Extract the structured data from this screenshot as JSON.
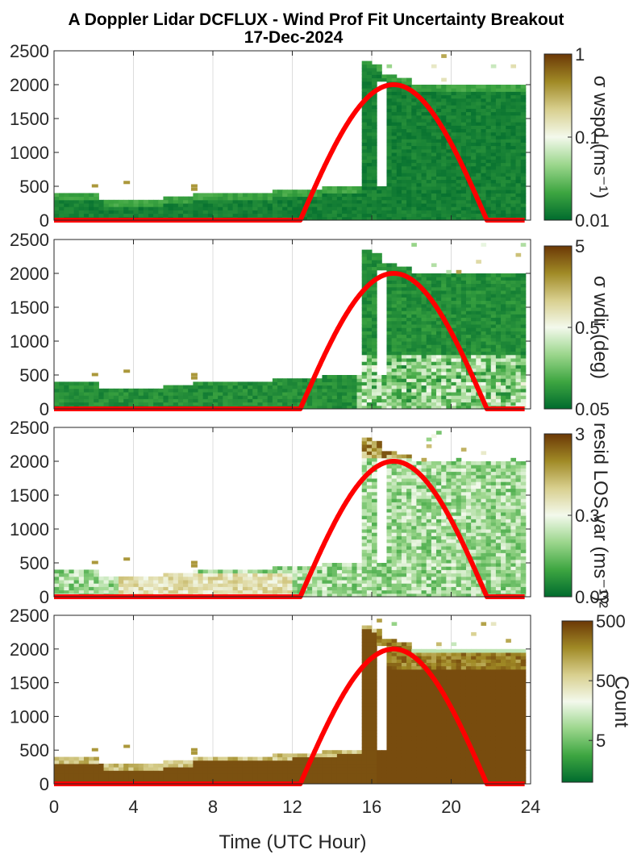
{
  "title": {
    "line1": "A Doppler Lidar DCFLUX - Wind Prof Fit Uncertainty Breakout",
    "line2": "17-Dec-2024"
  },
  "colors": {
    "sun_curve": "#ff0000",
    "colormap": [
      "#006b2e",
      "#3ea641",
      "#9bd68c",
      "#f3f9ec",
      "#d8cf8e",
      "#a08a26",
      "#6b3806"
    ]
  },
  "chart_data": [
    {
      "type": "heatmap",
      "xlabel": "",
      "ylabel": "",
      "xlim": [
        0,
        24
      ],
      "ylim": [
        0,
        2500
      ],
      "yticks": [
        0,
        500,
        1000,
        1500,
        2000,
        2500
      ],
      "xticks": [
        0,
        4,
        8,
        12,
        16,
        20,
        24
      ],
      "grid": true,
      "colorbar": {
        "label": "σ wspd (ms⁻¹)",
        "scale": "log",
        "lim": [
          0.01,
          1
        ],
        "ticks": [
          "0.01",
          "0.1",
          "1"
        ]
      }
    },
    {
      "type": "heatmap",
      "xlabel": "",
      "ylabel": "",
      "xlim": [
        0,
        24
      ],
      "ylim": [
        0,
        2500
      ],
      "yticks": [
        0,
        500,
        1000,
        1500,
        2000,
        2500
      ],
      "xticks": [
        0,
        4,
        8,
        12,
        16,
        20,
        24
      ],
      "grid": true,
      "colorbar": {
        "label": "σ wdir (deg)",
        "scale": "log",
        "lim": [
          0.05,
          5
        ],
        "ticks": [
          "0.05",
          "0.5",
          "5"
        ]
      }
    },
    {
      "type": "heatmap",
      "xlabel": "",
      "ylabel": "",
      "xlim": [
        0,
        24
      ],
      "ylim": [
        0,
        2500
      ],
      "yticks": [
        0,
        500,
        1000,
        1500,
        2000,
        2500
      ],
      "xticks": [
        0,
        4,
        8,
        12,
        16,
        20,
        24
      ],
      "grid": true,
      "colorbar": {
        "label": "resid LOS var (ms⁻¹)²",
        "scale": "log",
        "lim": [
          0.03,
          3
        ],
        "ticks": [
          "0.03",
          "0.3",
          "3"
        ]
      }
    },
    {
      "type": "heatmap",
      "xlabel": "Time (UTC Hour)",
      "ylabel": "",
      "xlim": [
        0,
        24
      ],
      "ylim": [
        0,
        2500
      ],
      "yticks": [
        0,
        500,
        1000,
        1500,
        2000,
        2500
      ],
      "xticks": [
        0,
        4,
        8,
        12,
        16,
        20,
        24
      ],
      "grid": true,
      "colorbar": {
        "label": "Count",
        "scale": "log",
        "lim": [
          1,
          500
        ],
        "ticks": [
          "5",
          "50",
          "500"
        ]
      }
    }
  ],
  "sun_curve": {
    "rise_hour": 12.4,
    "set_hour": 21.8,
    "peak_height": 2000
  }
}
